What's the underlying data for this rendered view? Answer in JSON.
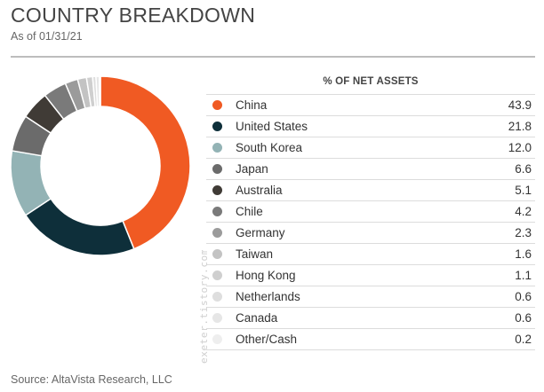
{
  "header": {
    "title": "COUNTRY BREAKDOWN",
    "as_of": "As of 01/31/21"
  },
  "table": {
    "column_header": "% OF NET ASSETS"
  },
  "watermark": "exeter.tistory.com",
  "source": "Source: AltaVista Research, LLC",
  "chart_data": {
    "type": "pie",
    "style": "donut",
    "title": "COUNTRY BREAKDOWN",
    "value_label": "% OF NET ASSETS",
    "categories": [
      "China",
      "United States",
      "South Korea",
      "Japan",
      "Australia",
      "Chile",
      "Germany",
      "Taiwan",
      "Hong Kong",
      "Netherlands",
      "Canada",
      "Other/Cash"
    ],
    "values": [
      43.9,
      21.8,
      12.0,
      6.6,
      5.1,
      4.2,
      2.3,
      1.6,
      1.1,
      0.6,
      0.6,
      0.2
    ],
    "display_values": [
      "43.9",
      "21.8",
      "12.0",
      "6.6",
      "5.1",
      "4.2",
      "2.3",
      "1.6",
      "1.1",
      "0.6",
      "0.6",
      "0.2"
    ],
    "colors": [
      "#f05a23",
      "#0e2f3a",
      "#93b3b5",
      "#6b6b6b",
      "#403b36",
      "#7a7a7a",
      "#9b9b9b",
      "#c3c3c3",
      "#cfcfcf",
      "#dedede",
      "#e6e6e6",
      "#eeeeee"
    ],
    "legend_placement": "right-table"
  }
}
